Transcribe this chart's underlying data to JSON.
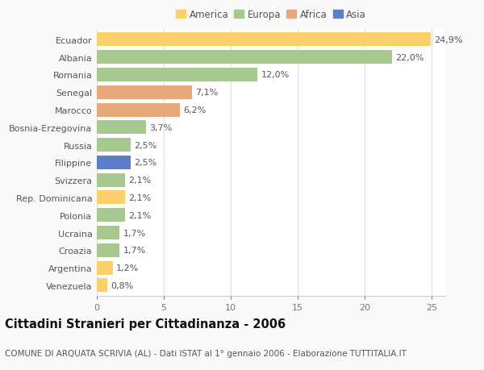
{
  "countries": [
    "Ecuador",
    "Albania",
    "Romania",
    "Senegal",
    "Marocco",
    "Bosnia-Erzegovina",
    "Russia",
    "Filippine",
    "Svizzera",
    "Rep. Dominicana",
    "Polonia",
    "Ucraina",
    "Croazia",
    "Argentina",
    "Venezuela"
  ],
  "values": [
    24.9,
    22.0,
    12.0,
    7.1,
    6.2,
    3.7,
    2.5,
    2.5,
    2.1,
    2.1,
    2.1,
    1.7,
    1.7,
    1.2,
    0.8
  ],
  "labels": [
    "24,9%",
    "22,0%",
    "12,0%",
    "7,1%",
    "6,2%",
    "3,7%",
    "2,5%",
    "2,5%",
    "2,1%",
    "2,1%",
    "2,1%",
    "1,7%",
    "1,7%",
    "1,2%",
    "0,8%"
  ],
  "continents": [
    "America",
    "Europa",
    "Europa",
    "Africa",
    "Africa",
    "Europa",
    "Europa",
    "Asia",
    "Europa",
    "America",
    "Europa",
    "Europa",
    "Europa",
    "America",
    "America"
  ],
  "continent_colors": {
    "America": "#F9D06A",
    "Europa": "#A8C892",
    "Africa": "#E8A87C",
    "Asia": "#5B7EC9"
  },
  "legend_order": [
    "America",
    "Europa",
    "Africa",
    "Asia"
  ],
  "title": "Cittadini Stranieri per Cittadinanza - 2006",
  "subtitle": "COMUNE DI ARQUATA SCRIVIA (AL) - Dati ISTAT al 1° gennaio 2006 - Elaborazione TUTTITALIA.IT",
  "xlim": [
    0,
    26
  ],
  "xticks": [
    0,
    5,
    10,
    15,
    20,
    25
  ],
  "background_color": "#f9f9f9",
  "bar_background": "#ffffff",
  "grid_color": "#dddddd",
  "title_fontsize": 10.5,
  "subtitle_fontsize": 7.5,
  "label_fontsize": 8,
  "tick_fontsize": 8,
  "legend_fontsize": 8.5,
  "bar_height": 0.78
}
